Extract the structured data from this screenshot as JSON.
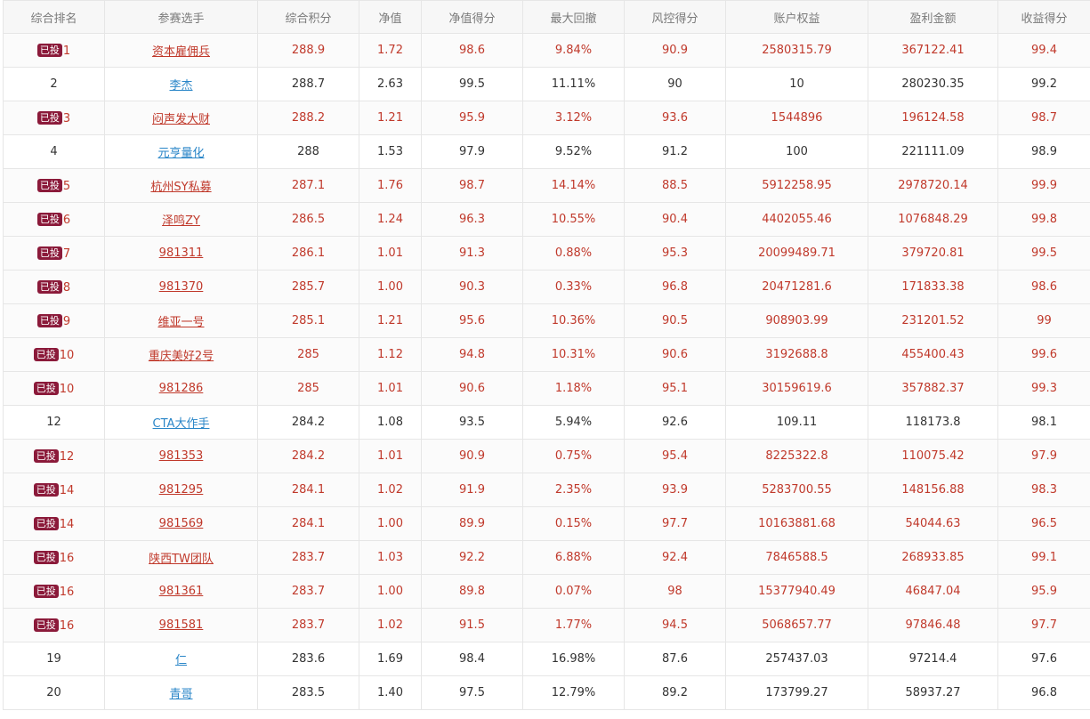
{
  "table": {
    "headers": [
      "综合排名",
      "参赛选手",
      "综合积分",
      "净值",
      "净值得分",
      "最大回撤",
      "风控得分",
      "账户权益",
      "盈利金额",
      "收益得分"
    ],
    "badge_label": "已投",
    "rows": [
      {
        "invested": true,
        "rank": "1",
        "player": "资本雇佣兵",
        "score": "288.9",
        "nav": "1.72",
        "nav_score": "98.6",
        "max_drawdown": "9.84%",
        "risk_score": "90.9",
        "equity": "2580315.79",
        "profit": "367122.41",
        "return_score": "99.4"
      },
      {
        "invested": false,
        "rank": "2",
        "player": "李杰",
        "score": "288.7",
        "nav": "2.63",
        "nav_score": "99.5",
        "max_drawdown": "11.11%",
        "risk_score": "90",
        "equity": "10",
        "profit": "280230.35",
        "return_score": "99.2"
      },
      {
        "invested": true,
        "rank": "3",
        "player": "闷声发大财",
        "score": "288.2",
        "nav": "1.21",
        "nav_score": "95.9",
        "max_drawdown": "3.12%",
        "risk_score": "93.6",
        "equity": "1544896",
        "profit": "196124.58",
        "return_score": "98.7"
      },
      {
        "invested": false,
        "rank": "4",
        "player": "元亨量化",
        "score": "288",
        "nav": "1.53",
        "nav_score": "97.9",
        "max_drawdown": "9.52%",
        "risk_score": "91.2",
        "equity": "100",
        "profit": "221111.09",
        "return_score": "98.9"
      },
      {
        "invested": true,
        "rank": "5",
        "player": "杭州SY私募",
        "score": "287.1",
        "nav": "1.76",
        "nav_score": "98.7",
        "max_drawdown": "14.14%",
        "risk_score": "88.5",
        "equity": "5912258.95",
        "profit": "2978720.14",
        "return_score": "99.9"
      },
      {
        "invested": true,
        "rank": "6",
        "player": "泽鸣ZY",
        "score": "286.5",
        "nav": "1.24",
        "nav_score": "96.3",
        "max_drawdown": "10.55%",
        "risk_score": "90.4",
        "equity": "4402055.46",
        "profit": "1076848.29",
        "return_score": "99.8"
      },
      {
        "invested": true,
        "rank": "7",
        "player": "981311",
        "score": "286.1",
        "nav": "1.01",
        "nav_score": "91.3",
        "max_drawdown": "0.88%",
        "risk_score": "95.3",
        "equity": "20099489.71",
        "profit": "379720.81",
        "return_score": "99.5"
      },
      {
        "invested": true,
        "rank": "8",
        "player": "981370",
        "score": "285.7",
        "nav": "1.00",
        "nav_score": "90.3",
        "max_drawdown": "0.33%",
        "risk_score": "96.8",
        "equity": "20471281.6",
        "profit": "171833.38",
        "return_score": "98.6"
      },
      {
        "invested": true,
        "rank": "9",
        "player": "维亚一号",
        "score": "285.1",
        "nav": "1.21",
        "nav_score": "95.6",
        "max_drawdown": "10.36%",
        "risk_score": "90.5",
        "equity": "908903.99",
        "profit": "231201.52",
        "return_score": "99"
      },
      {
        "invested": true,
        "rank": "10",
        "player": "重庆美好2号",
        "score": "285",
        "nav": "1.12",
        "nav_score": "94.8",
        "max_drawdown": "10.31%",
        "risk_score": "90.6",
        "equity": "3192688.8",
        "profit": "455400.43",
        "return_score": "99.6"
      },
      {
        "invested": true,
        "rank": "10",
        "player": "981286",
        "score": "285",
        "nav": "1.01",
        "nav_score": "90.6",
        "max_drawdown": "1.18%",
        "risk_score": "95.1",
        "equity": "30159619.6",
        "profit": "357882.37",
        "return_score": "99.3"
      },
      {
        "invested": false,
        "rank": "12",
        "player": "CTA大作手",
        "score": "284.2",
        "nav": "1.08",
        "nav_score": "93.5",
        "max_drawdown": "5.94%",
        "risk_score": "92.6",
        "equity": "109.11",
        "profit": "118173.8",
        "return_score": "98.1"
      },
      {
        "invested": true,
        "rank": "12",
        "player": "981353",
        "score": "284.2",
        "nav": "1.01",
        "nav_score": "90.9",
        "max_drawdown": "0.75%",
        "risk_score": "95.4",
        "equity": "8225322.8",
        "profit": "110075.42",
        "return_score": "97.9"
      },
      {
        "invested": true,
        "rank": "14",
        "player": "981295",
        "score": "284.1",
        "nav": "1.02",
        "nav_score": "91.9",
        "max_drawdown": "2.35%",
        "risk_score": "93.9",
        "equity": "5283700.55",
        "profit": "148156.88",
        "return_score": "98.3"
      },
      {
        "invested": true,
        "rank": "14",
        "player": "981569",
        "score": "284.1",
        "nav": "1.00",
        "nav_score": "89.9",
        "max_drawdown": "0.15%",
        "risk_score": "97.7",
        "equity": "10163881.68",
        "profit": "54044.63",
        "return_score": "96.5"
      },
      {
        "invested": true,
        "rank": "16",
        "player": "陕西TW团队",
        "score": "283.7",
        "nav": "1.03",
        "nav_score": "92.2",
        "max_drawdown": "6.88%",
        "risk_score": "92.4",
        "equity": "7846588.5",
        "profit": "268933.85",
        "return_score": "99.1"
      },
      {
        "invested": true,
        "rank": "16",
        "player": "981361",
        "score": "283.7",
        "nav": "1.00",
        "nav_score": "89.8",
        "max_drawdown": "0.07%",
        "risk_score": "98",
        "equity": "15377940.49",
        "profit": "46847.04",
        "return_score": "95.9"
      },
      {
        "invested": true,
        "rank": "16",
        "player": "981581",
        "score": "283.7",
        "nav": "1.02",
        "nav_score": "91.5",
        "max_drawdown": "1.77%",
        "risk_score": "94.5",
        "equity": "5068657.77",
        "profit": "97846.48",
        "return_score": "97.7"
      },
      {
        "invested": false,
        "rank": "19",
        "player": "仁",
        "score": "283.6",
        "nav": "1.69",
        "nav_score": "98.4",
        "max_drawdown": "16.98%",
        "risk_score": "87.6",
        "equity": "257437.03",
        "profit": "97214.4",
        "return_score": "97.6"
      },
      {
        "invested": false,
        "rank": "20",
        "player": "青哥",
        "score": "283.5",
        "nav": "1.40",
        "nav_score": "97.5",
        "max_drawdown": "12.79%",
        "risk_score": "89.2",
        "equity": "173799.27",
        "profit": "58937.27",
        "return_score": "96.8"
      }
    ]
  },
  "colors": {
    "invested_text": "#c0392b",
    "normal_text": "#333333",
    "link_normal": "#2a86c8",
    "badge_bg": "#8b1a3a",
    "header_text": "#7a7a7a"
  }
}
